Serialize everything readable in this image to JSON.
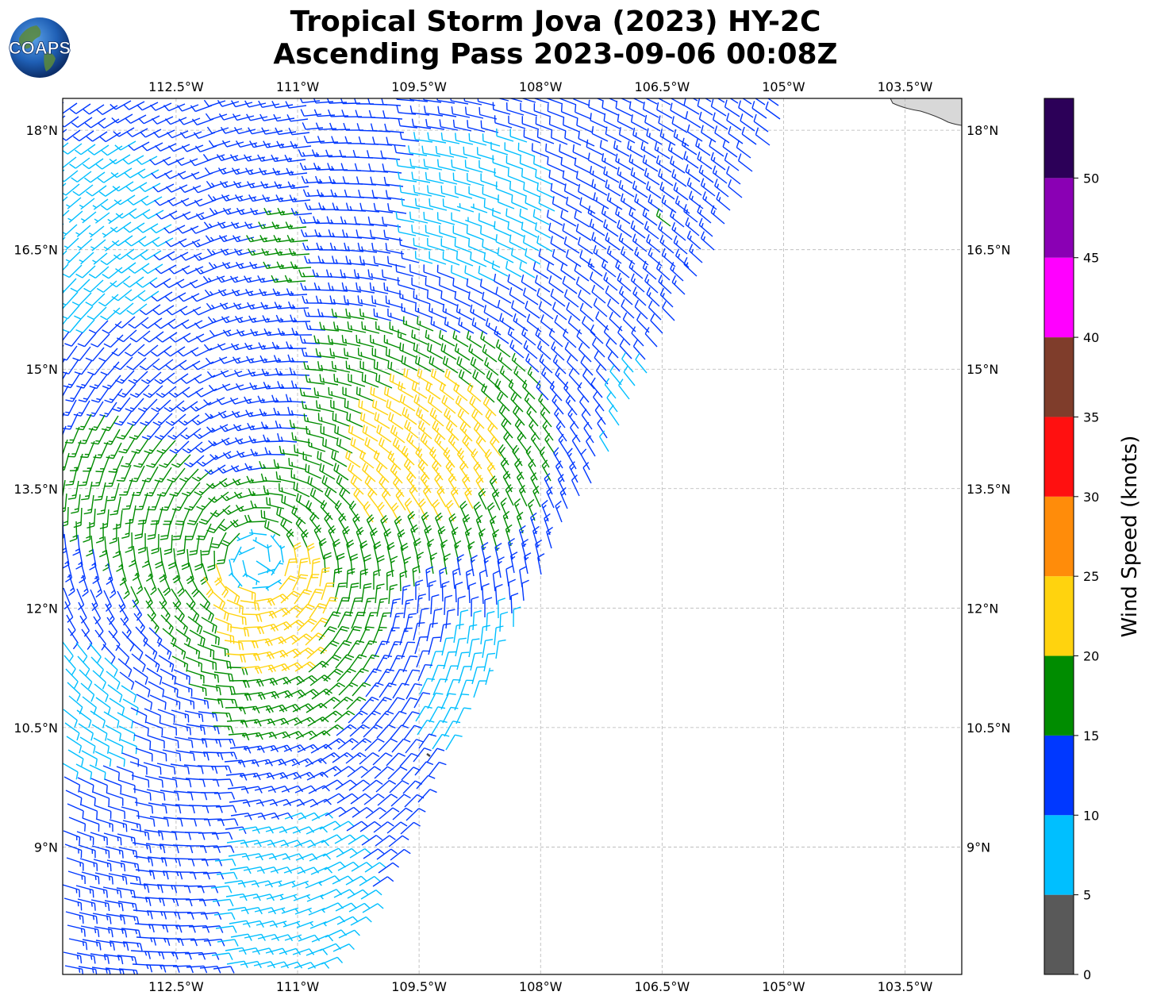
{
  "title_line1": "Tropical Storm Jova (2023) HY-2C",
  "title_line2": "Ascending Pass 2023-09-06 00:08Z",
  "logo_text": "COAPS",
  "map": {
    "lon_range": [
      -113.9,
      -102.8
    ],
    "lat_range": [
      7.4,
      18.4
    ],
    "lon_ticks": [
      -112.5,
      -111,
      -109.5,
      -108,
      -106.5,
      -105,
      -103.5
    ],
    "lon_labels": [
      "112.5°W",
      "111°W",
      "109.5°W",
      "108°W",
      "106.5°W",
      "105°W",
      "103.5°W"
    ],
    "lat_ticks": [
      18,
      16.5,
      15,
      13.5,
      12,
      10.5,
      9
    ],
    "lat_labels": [
      "18°N",
      "16.5°N",
      "15°N",
      "13.5°N",
      "12°N",
      "10.5°N",
      "9°N"
    ],
    "grid": true,
    "land_color": "#d8d8d8",
    "coast_color": "#333333"
  },
  "colorbar": {
    "label": "Wind Speed (knots)",
    "tick_values": [
      0,
      5,
      10,
      15,
      20,
      25,
      30,
      35,
      40,
      45,
      50
    ],
    "tick_labels": [
      "0",
      "5",
      "10",
      "15",
      "20",
      "25",
      "30",
      "35",
      "40",
      "45",
      "50"
    ],
    "bins": [
      {
        "min": 0,
        "max": 5,
        "color": "#595959"
      },
      {
        "min": 5,
        "max": 10,
        "color": "#00bfff"
      },
      {
        "min": 10,
        "max": 15,
        "color": "#0038ff"
      },
      {
        "min": 15,
        "max": 20,
        "color": "#008c00"
      },
      {
        "min": 20,
        "max": 25,
        "color": "#ffd30e"
      },
      {
        "min": 25,
        "max": 30,
        "color": "#ff8c0a"
      },
      {
        "min": 30,
        "max": 35,
        "color": "#ff1010"
      },
      {
        "min": 35,
        "max": 40,
        "color": "#7f3d2b"
      },
      {
        "min": 40,
        "max": 45,
        "color": "#ff00ff"
      },
      {
        "min": 45,
        "max": 50,
        "color": "#8a00b4"
      },
      {
        "min": 50,
        "max": 55,
        "color": "#2c0058"
      }
    ]
  },
  "chart_data": {
    "type": "wind-barb map",
    "center": {
      "lon": -111.5,
      "lat": 12.6
    },
    "swath_edge": {
      "lon": -110.6,
      "lat": 7.4,
      "heading_deg": 28
    },
    "speed_zones": [
      {
        "name": "core",
        "center_lon": -109.7,
        "center_lat": 14.0,
        "speed_kt": 22
      },
      {
        "name": "inner",
        "center_lon": -111.8,
        "center_lat": 12.3,
        "speed_kt": 21
      }
    ]
  }
}
